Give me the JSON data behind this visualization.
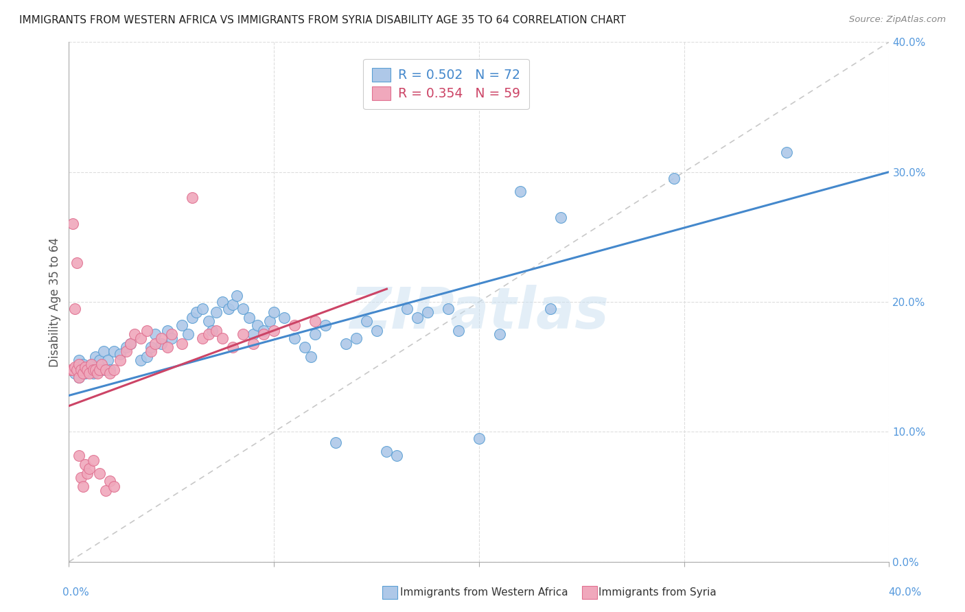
{
  "title": "IMMIGRANTS FROM WESTERN AFRICA VS IMMIGRANTS FROM SYRIA DISABILITY AGE 35 TO 64 CORRELATION CHART",
  "source": "Source: ZipAtlas.com",
  "ylabel": "Disability Age 35 to 64",
  "legend_label1": "Immigrants from Western Africa",
  "legend_label2": "Immigrants from Syria",
  "r1": "0.502",
  "n1": "72",
  "r2": "0.354",
  "n2": "59",
  "color_blue": "#aec8e8",
  "color_pink": "#f0a8bc",
  "color_blue_dark": "#5a9fd4",
  "color_pink_dark": "#e07090",
  "color_line_blue": "#4488cc",
  "color_line_pink": "#cc4466",
  "color_diag": "#c8c8c8",
  "color_tick": "#5599dd",
  "xlim": [
    0.0,
    0.4
  ],
  "ylim": [
    0.0,
    0.4
  ],
  "ytick_values": [
    0.0,
    0.1,
    0.2,
    0.3,
    0.4
  ],
  "ytick_labels": [
    "0.0%",
    "10.0%",
    "20.0%",
    "30.0%",
    "40.0%"
  ],
  "xtick_bottom_left": "0.0%",
  "xtick_bottom_right": "40.0%",
  "watermark": "ZIPatlas",
  "background_color": "#ffffff",
  "blue_line_x": [
    0.0,
    0.4
  ],
  "blue_line_y": [
    0.128,
    0.3
  ],
  "pink_line_x": [
    0.0,
    0.155
  ],
  "pink_line_y": [
    0.12,
    0.21
  ]
}
